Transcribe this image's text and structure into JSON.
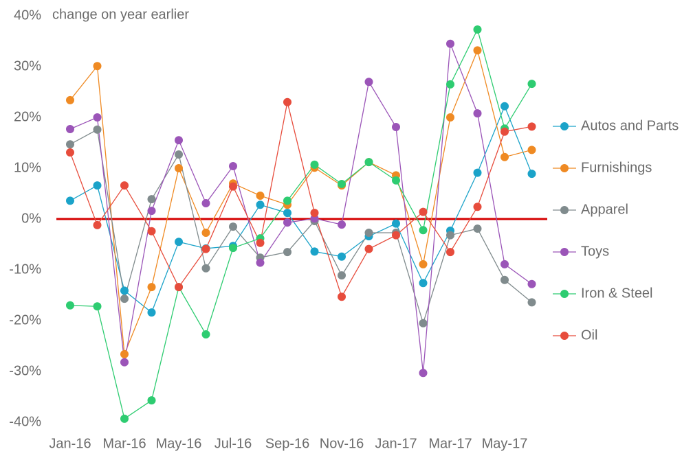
{
  "chart_data": {
    "type": "line",
    "annotation": "change on year earlier",
    "categories": [
      "Jan-16",
      null,
      "Mar-16",
      null,
      "May-16",
      null,
      "Jul-16",
      null,
      "Sep-16",
      null,
      "Nov-16",
      null,
      "Jan-17",
      null,
      "Mar-17",
      null,
      "May-17",
      null
    ],
    "series": [
      {
        "name": "Autos and Parts",
        "color": "#1ba3c9",
        "values": [
          3.6,
          6.6,
          -14.1,
          -18.4,
          -4.5,
          -5.8,
          -5.3,
          2.8,
          1.2,
          -6.4,
          -7.4,
          -3.4,
          -0.9,
          -12.6,
          -2.3,
          9.1,
          22.2,
          8.9
        ]
      },
      {
        "name": "Furnishings",
        "color": "#ef8a23",
        "values": [
          23.4,
          30.1,
          -26.6,
          -13.4,
          10,
          -2.7,
          7,
          4.6,
          2.8,
          10.1,
          6.6,
          11.2,
          8.6,
          -8.9,
          20,
          33.2,
          12.2,
          13.6
        ]
      },
      {
        "name": "Apparel",
        "color": "#808b8d",
        "values": [
          14.7,
          17.6,
          -15.7,
          3.9,
          12.7,
          -9.7,
          -1.5,
          -7.6,
          -6.5,
          -0.4,
          -11.1,
          -2.7,
          -2.7,
          -20.5,
          -3.2,
          -1.9,
          -12,
          -16.4
        ]
      },
      {
        "name": "Toys",
        "color": "#9b55b8",
        "values": [
          17.7,
          20,
          -28.2,
          1.6,
          15.5,
          3.1,
          10.4,
          -8.6,
          -0.7,
          0.1,
          -1.1,
          27,
          18.1,
          -30.3,
          34.5,
          20.8,
          -8.9,
          -12.8
        ]
      },
      {
        "name": "Iron & Steel",
        "color": "#2ecc71",
        "values": [
          -17,
          -17.2,
          -39.3,
          -35.7,
          -13.4,
          -22.7,
          -5.7,
          -3.8,
          3.6,
          10.7,
          6.9,
          11.2,
          7.6,
          -2.2,
          26.5,
          37.3,
          17.8,
          26.6
        ]
      },
      {
        "name": "Oil",
        "color": "#e74c3c",
        "values": [
          13.1,
          -1.2,
          6.6,
          -2.4,
          -13.4,
          -5.9,
          6.4,
          -4.7,
          23,
          1.2,
          -15.3,
          -5.9,
          -3.2,
          1.4,
          -6.5,
          2.4,
          17.2,
          18.2
        ]
      }
    ],
    "ylim": [
      -40,
      40
    ],
    "yticks": [
      {
        "value": 40,
        "label": "40%"
      },
      {
        "value": 30,
        "label": "30%"
      },
      {
        "value": 20,
        "label": "20%"
      },
      {
        "value": 10,
        "label": "10%"
      },
      {
        "value": 0,
        "label": "0%"
      },
      {
        "value": -10,
        "label": "-10%"
      },
      {
        "value": -20,
        "label": "-20%"
      },
      {
        "value": -30,
        "label": "-30%"
      },
      {
        "value": -40,
        "label": "-40%"
      }
    ],
    "grid": false,
    "reference_line": {
      "value": 0,
      "color": "#d40000"
    },
    "legend": "right"
  }
}
